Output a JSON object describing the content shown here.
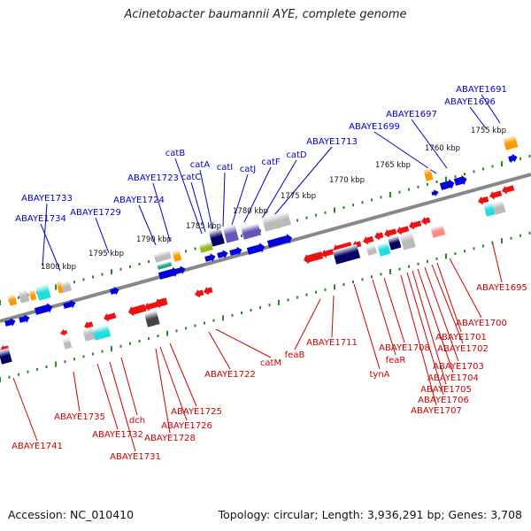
{
  "title": "Acinetobacter baumannii AYE, complete genome",
  "footer": {
    "accession": "Accession: NC_010410",
    "summary": "Topology: circular; Length: 3,936,291 bp; Genes: 3,708"
  },
  "colors": {
    "backbone": "#888888",
    "ticks": "#228b22",
    "forward_label": "#0000cc",
    "reverse_label": "#cc0000",
    "forward_gene": "#0000dd",
    "reverse_gene": "#ee1111",
    "orange_gene": "#ff9900",
    "cyan_gene": "#22dddd",
    "grey_gene": "#bbbbbb",
    "navy_gene": "#000066",
    "purple_gene": "#6655bb"
  },
  "scale_labels": [
    "1755 kbp",
    "1760 kbp",
    "1765 kbp",
    "1770 kbp",
    "1775 kbp",
    "1780 kbp",
    "1785 kbp",
    "1790 kbp",
    "1795 kbp",
    "1800 kbp"
  ],
  "forward_labels": [
    "ABAYE1691",
    "ABAYE1696",
    "ABAYE1697",
    "ABAYE1699",
    "ABAYE1713",
    "catD",
    "catF",
    "catJ",
    "catI",
    "catA",
    "catC",
    "catB",
    "ABAYE1723",
    "ABAYE1724",
    "ABAYE1729",
    "ABAYE1733",
    "ABAYE1734"
  ],
  "reverse_labels": [
    "ABAYE1695",
    "ABAYE1700",
    "ABAYE1701",
    "ABAYE1702",
    "ABAYE1703",
    "ABAYE1704",
    "ABAYE1705",
    "ABAYE1706",
    "ABAYE1707",
    "ABAYE1708",
    "feaR",
    "tynA",
    "ABAYE1711",
    "feaB",
    "catM",
    "ABAYE1722",
    "ABAYE1725",
    "ABAYE1726",
    "ABAYE1728",
    "dch",
    "ABAYE1731",
    "ABAYE1732",
    "ABAYE1735",
    "ABAYE1741"
  ]
}
